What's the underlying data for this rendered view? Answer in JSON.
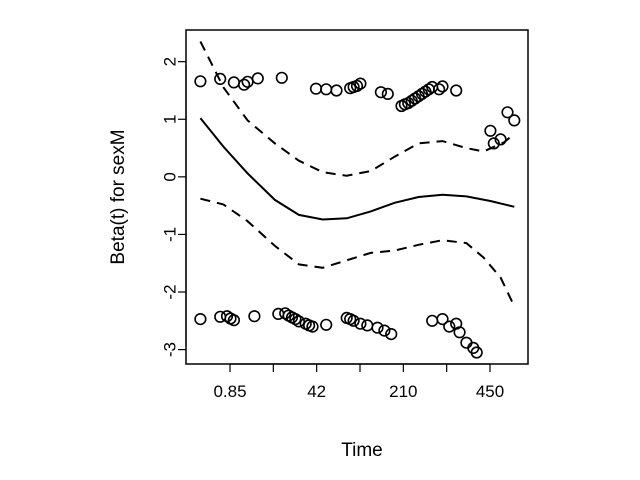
{
  "chart_data": {
    "type": "scatter",
    "title": "",
    "xlabel": "Time",
    "ylabel": "Beta(t) for sexM",
    "x_scale": "transformed (rank-based)",
    "xlim": [
      0,
      1
    ],
    "ylim": [
      -3.25,
      2.55
    ],
    "x_tick_labels": [
      "0.85",
      "42",
      "210",
      "450"
    ],
    "x_minor_ticks": 7,
    "y_ticks": [
      -3,
      -2,
      -1,
      0,
      1,
      2
    ],
    "grid": false,
    "legend": "none",
    "series": [
      {
        "kind": "curve",
        "style": "solid",
        "points": [
          [
            0.042,
            1.02
          ],
          [
            0.11,
            0.52
          ],
          [
            0.18,
            0.06
          ],
          [
            0.26,
            -0.4
          ],
          [
            0.33,
            -0.66
          ],
          [
            0.4,
            -0.74
          ],
          [
            0.47,
            -0.72
          ],
          [
            0.54,
            -0.6
          ],
          [
            0.61,
            -0.45
          ],
          [
            0.68,
            -0.35
          ],
          [
            0.75,
            -0.31
          ],
          [
            0.82,
            -0.34
          ],
          [
            0.89,
            -0.42
          ],
          [
            0.96,
            -0.52
          ]
        ]
      },
      {
        "kind": "curve",
        "style": "dashed",
        "points": [
          [
            0.042,
            2.35
          ],
          [
            0.11,
            1.55
          ],
          [
            0.18,
            0.98
          ],
          [
            0.26,
            0.58
          ],
          [
            0.33,
            0.28
          ],
          [
            0.4,
            0.08
          ],
          [
            0.47,
            0.02
          ],
          [
            0.54,
            0.1
          ],
          [
            0.61,
            0.35
          ],
          [
            0.68,
            0.58
          ],
          [
            0.75,
            0.62
          ],
          [
            0.82,
            0.5
          ],
          [
            0.87,
            0.44
          ],
          [
            0.93,
            0.6
          ],
          [
            0.96,
            0.75
          ]
        ]
      },
      {
        "kind": "curve",
        "style": "dashed",
        "points": [
          [
            0.042,
            -0.38
          ],
          [
            0.11,
            -0.48
          ],
          [
            0.18,
            -0.77
          ],
          [
            0.26,
            -1.2
          ],
          [
            0.33,
            -1.52
          ],
          [
            0.4,
            -1.58
          ],
          [
            0.47,
            -1.45
          ],
          [
            0.54,
            -1.32
          ],
          [
            0.61,
            -1.28
          ],
          [
            0.68,
            -1.18
          ],
          [
            0.75,
            -1.1
          ],
          [
            0.82,
            -1.15
          ],
          [
            0.87,
            -1.4
          ],
          [
            0.92,
            -1.75
          ],
          [
            0.96,
            -2.25
          ]
        ]
      },
      {
        "kind": "residuals",
        "points": [
          [
            0.042,
            1.66
          ],
          [
            0.1,
            1.7
          ],
          [
            0.14,
            1.64
          ],
          [
            0.17,
            1.6
          ],
          [
            0.18,
            1.65
          ],
          [
            0.21,
            1.71
          ],
          [
            0.28,
            1.72
          ],
          [
            0.38,
            1.53
          ],
          [
            0.41,
            1.52
          ],
          [
            0.44,
            1.5
          ],
          [
            0.48,
            1.54
          ],
          [
            0.49,
            1.56
          ],
          [
            0.5,
            1.58
          ],
          [
            0.51,
            1.62
          ],
          [
            0.57,
            1.47
          ],
          [
            0.59,
            1.44
          ],
          [
            0.63,
            1.23
          ],
          [
            0.64,
            1.26
          ],
          [
            0.65,
            1.28
          ],
          [
            0.66,
            1.32
          ],
          [
            0.67,
            1.36
          ],
          [
            0.68,
            1.4
          ],
          [
            0.69,
            1.44
          ],
          [
            0.7,
            1.48
          ],
          [
            0.71,
            1.52
          ],
          [
            0.72,
            1.56
          ],
          [
            0.74,
            1.52
          ],
          [
            0.75,
            1.57
          ],
          [
            0.79,
            1.5
          ],
          [
            0.89,
            0.8
          ],
          [
            0.9,
            0.58
          ],
          [
            0.92,
            0.65
          ],
          [
            0.94,
            1.12
          ],
          [
            0.96,
            0.98
          ],
          [
            0.042,
            -2.47
          ],
          [
            0.1,
            -2.43
          ],
          [
            0.12,
            -2.42
          ],
          [
            0.13,
            -2.46
          ],
          [
            0.14,
            -2.49
          ],
          [
            0.2,
            -2.42
          ],
          [
            0.27,
            -2.38
          ],
          [
            0.29,
            -2.37
          ],
          [
            0.3,
            -2.41
          ],
          [
            0.31,
            -2.44
          ],
          [
            0.32,
            -2.47
          ],
          [
            0.33,
            -2.51
          ],
          [
            0.35,
            -2.55
          ],
          [
            0.36,
            -2.58
          ],
          [
            0.37,
            -2.6
          ],
          [
            0.41,
            -2.57
          ],
          [
            0.47,
            -2.45
          ],
          [
            0.48,
            -2.47
          ],
          [
            0.49,
            -2.5
          ],
          [
            0.51,
            -2.55
          ],
          [
            0.53,
            -2.58
          ],
          [
            0.56,
            -2.62
          ],
          [
            0.58,
            -2.67
          ],
          [
            0.6,
            -2.73
          ],
          [
            0.72,
            -2.5
          ],
          [
            0.75,
            -2.47
          ],
          [
            0.77,
            -2.6
          ],
          [
            0.79,
            -2.55
          ],
          [
            0.8,
            -2.7
          ],
          [
            0.82,
            -2.88
          ],
          [
            0.84,
            -2.97
          ],
          [
            0.85,
            -3.05
          ]
        ]
      }
    ]
  }
}
